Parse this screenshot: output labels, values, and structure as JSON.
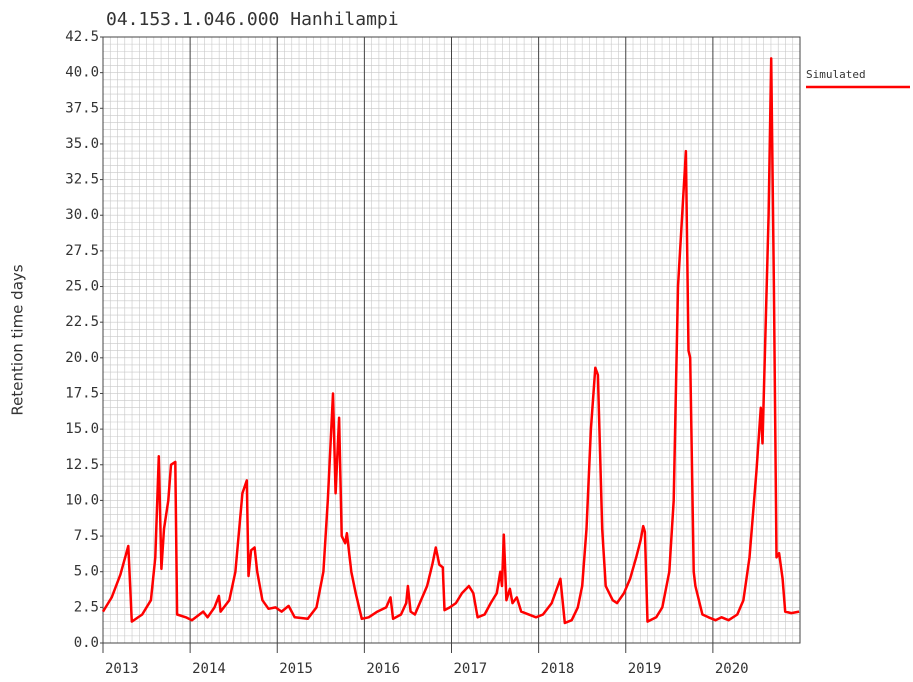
{
  "chart_data": {
    "type": "line",
    "title": "04.153.1.046.000 Hanhilampi",
    "y_label": "Retention time days",
    "x": [
      2013.0,
      2013.1,
      2013.2,
      2013.29,
      2013.33,
      2013.45,
      2013.55,
      2013.6,
      2013.64,
      2013.67,
      2013.7,
      2013.75,
      2013.78,
      2013.83,
      2013.85,
      2013.95,
      2014.02,
      2014.15,
      2014.2,
      2014.28,
      2014.33,
      2014.35,
      2014.45,
      2014.52,
      2014.6,
      2014.65,
      2014.67,
      2014.7,
      2014.74,
      2014.77,
      2014.83,
      2014.9,
      2014.98,
      2015.05,
      2015.13,
      2015.2,
      2015.35,
      2015.45,
      2015.53,
      2015.58,
      2015.64,
      2015.67,
      2015.71,
      2015.74,
      2015.78,
      2015.8,
      2015.85,
      2015.9,
      2015.97,
      2016.05,
      2016.15,
      2016.25,
      2016.3,
      2016.33,
      2016.42,
      2016.48,
      2016.5,
      2016.53,
      2016.58,
      2016.65,
      2016.72,
      2016.78,
      2016.82,
      2016.86,
      2016.9,
      2016.92,
      2016.98,
      2017.05,
      2017.12,
      2017.2,
      2017.25,
      2017.3,
      2017.38,
      2017.45,
      2017.52,
      2017.56,
      2017.58,
      2017.6,
      2017.63,
      2017.67,
      2017.7,
      2017.75,
      2017.8,
      2017.97,
      2018.05,
      2018.15,
      2018.25,
      2018.3,
      2018.38,
      2018.45,
      2018.5,
      2018.55,
      2018.6,
      2018.65,
      2018.68,
      2018.73,
      2018.77,
      2018.85,
      2018.9,
      2018.98,
      2019.05,
      2019.12,
      2019.17,
      2019.2,
      2019.22,
      2019.25,
      2019.35,
      2019.42,
      2019.5,
      2019.55,
      2019.6,
      2019.69,
      2019.72,
      2019.74,
      2019.78,
      2019.8,
      2019.88,
      2019.95,
      2020.03,
      2020.1,
      2020.18,
      2020.28,
      2020.35,
      2020.42,
      2020.5,
      2020.55,
      2020.57,
      2020.64,
      2020.67,
      2020.7,
      2020.73,
      2020.76,
      2020.8,
      2020.83,
      2020.9,
      2020.99
    ],
    "series": [
      {
        "name": "Simulated",
        "color": "#ff0000",
        "values": [
          2.2,
          3.2,
          4.8,
          6.8,
          1.5,
          2.0,
          3.0,
          6.0,
          13.1,
          5.2,
          8.0,
          10.0,
          12.5,
          12.7,
          2.0,
          1.8,
          1.6,
          2.2,
          1.8,
          2.5,
          3.3,
          2.2,
          3.0,
          5.0,
          10.5,
          11.4,
          4.7,
          6.5,
          6.7,
          5.0,
          3.0,
          2.4,
          2.5,
          2.2,
          2.6,
          1.8,
          1.7,
          2.5,
          5.0,
          10.0,
          17.5,
          10.5,
          15.8,
          7.5,
          7.0,
          7.7,
          5.0,
          3.5,
          1.7,
          1.8,
          2.2,
          2.5,
          3.2,
          1.7,
          2.0,
          2.8,
          4.0,
          2.2,
          2.0,
          3.0,
          4.0,
          5.5,
          6.7,
          5.5,
          5.3,
          2.3,
          2.5,
          2.8,
          3.5,
          4.0,
          3.5,
          1.8,
          2.0,
          2.8,
          3.5,
          5.0,
          4.0,
          7.6,
          3.0,
          3.8,
          2.8,
          3.2,
          2.2,
          1.8,
          2.0,
          2.8,
          4.5,
          1.4,
          1.6,
          2.5,
          4.0,
          8.0,
          15.0,
          19.3,
          18.8,
          8.0,
          4.0,
          3.0,
          2.8,
          3.5,
          4.5,
          6.0,
          7.2,
          8.2,
          7.8,
          1.5,
          1.8,
          2.5,
          5.0,
          10.0,
          25.0,
          34.5,
          20.5,
          20.0,
          5.0,
          4.0,
          2.0,
          1.8,
          1.6,
          1.8,
          1.6,
          2.0,
          3.0,
          6.0,
          12.0,
          16.5,
          14.0,
          30.0,
          41.0,
          25.0,
          6.0,
          6.3,
          4.5,
          2.2,
          2.1,
          2.2
        ]
      }
    ],
    "xlim": [
      2013,
      2021
    ],
    "xticks": [
      2013,
      2014,
      2015,
      2016,
      2017,
      2018,
      2019,
      2020
    ],
    "ylim": [
      0,
      42.5
    ],
    "yticks": [
      {
        "value": 0,
        "label": "0.0"
      },
      2.5,
      {
        "value": 5,
        "label": "5.0"
      },
      7.5,
      {
        "value": 10,
        "label": "10.0"
      },
      12.5,
      {
        "value": 15,
        "label": "15.0"
      },
      17.5,
      {
        "value": 20,
        "label": "20.0"
      },
      22.5,
      {
        "value": 25,
        "label": "25.0"
      },
      27.5,
      {
        "value": 30,
        "label": "30.0"
      },
      32.5,
      {
        "value": 35,
        "label": "35.0"
      },
      37.5,
      {
        "value": 40,
        "label": "40.0"
      },
      42.5
    ],
    "grid": true,
    "legend": "right"
  }
}
